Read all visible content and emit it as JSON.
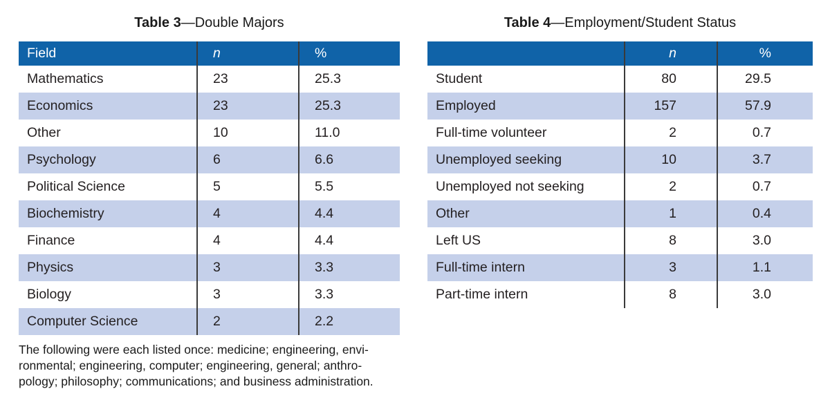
{
  "colors": {
    "header_bg": "#1063a8",
    "header_text": "#ffffff",
    "band_bg": "#c5d0ea",
    "divider": "#3a3a3a",
    "text": "#231f20",
    "page_bg": "#ffffff"
  },
  "table3": {
    "title_bold": "Table 3",
    "title_rest": "—Double Majors",
    "columns": [
      "Field",
      "n",
      "%"
    ],
    "rows": [
      [
        "Mathematics",
        "23",
        "25.3"
      ],
      [
        "Economics",
        "23",
        "25.3"
      ],
      [
        "Other",
        "10",
        "11.0"
      ],
      [
        "Psychology",
        "6",
        "6.6"
      ],
      [
        "Political Science",
        "5",
        "5.5"
      ],
      [
        "Biochemistry",
        "4",
        "4.4"
      ],
      [
        "Finance",
        "4",
        "4.4"
      ],
      [
        "Physics",
        "3",
        "3.3"
      ],
      [
        "Biology",
        "3",
        "3.3"
      ],
      [
        "Computer Science",
        "2",
        "2.2"
      ]
    ],
    "footnote": "The following were each listed once: medicine; engineering, envi-\nronmental; engineering, computer; engineering, general; anthro-\npology; philosophy; communications; and business administration."
  },
  "table4": {
    "title_bold": "Table 4",
    "title_rest": "—Employment/Student Status",
    "columns": [
      "",
      "n",
      "%"
    ],
    "rows": [
      [
        "Student",
        "80",
        "29.5"
      ],
      [
        "Employed",
        "157",
        "57.9"
      ],
      [
        "Full-time volunteer",
        "2",
        "0.7"
      ],
      [
        "Unemployed seeking",
        "10",
        "3.7"
      ],
      [
        "Unemployed not seeking",
        "2",
        "0.7"
      ],
      [
        "Other",
        "1",
        "0.4"
      ],
      [
        "Left US",
        "8",
        "3.0"
      ],
      [
        "Full-time intern",
        "3",
        "1.1"
      ],
      [
        "Part-time intern",
        "8",
        "3.0"
      ]
    ]
  }
}
